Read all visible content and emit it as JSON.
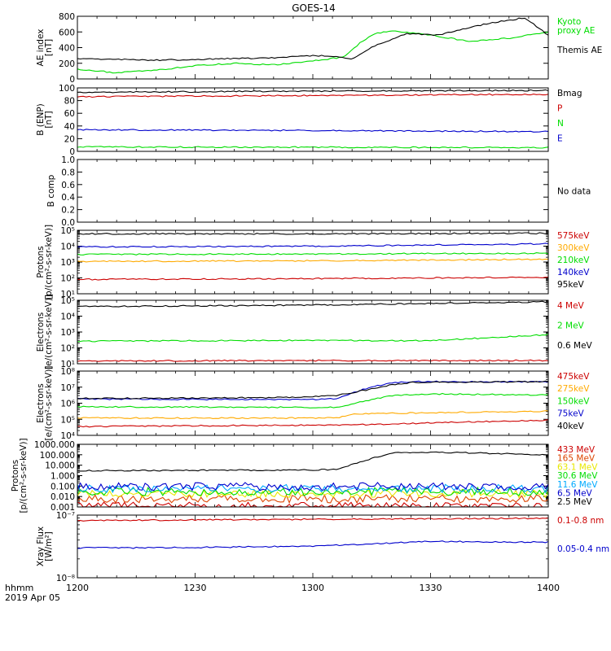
{
  "title": "GOES-14",
  "footer": {
    "time_label": "hhmm",
    "date_label": "2019 Apr 05"
  },
  "x_ticks": [
    "1200",
    "1230",
    "1300",
    "1330",
    "1400"
  ],
  "chart_data": [
    {
      "type": "line",
      "ylabel": [
        "AE index",
        "[nT]"
      ],
      "ylim": [
        0,
        800
      ],
      "yticks": [
        "0",
        "200",
        "400",
        "600",
        "800"
      ],
      "series": [
        {
          "name": "Kyoto proxy AE",
          "label_lines": [
            "Kyoto",
            "proxy AE"
          ],
          "color": "#00dd00",
          "x": [
            0,
            10,
            20,
            30,
            40,
            50,
            60,
            68,
            72,
            76,
            80,
            90,
            100,
            110,
            120
          ],
          "y": [
            120,
            80,
            110,
            170,
            200,
            180,
            230,
            280,
            460,
            580,
            620,
            560,
            480,
            520,
            600
          ]
        },
        {
          "name": "Themis AE",
          "color": "#000000",
          "x": [
            0,
            10,
            20,
            30,
            40,
            50,
            60,
            64,
            70,
            76,
            84,
            92,
            100,
            106,
            114,
            120
          ],
          "y": [
            260,
            250,
            240,
            250,
            260,
            270,
            300,
            290,
            260,
            430,
            580,
            560,
            660,
            720,
            780,
            560
          ]
        }
      ]
    },
    {
      "type": "line",
      "ylabel": [
        "B (ENP)",
        "[nT]"
      ],
      "ylim": [
        0,
        100
      ],
      "yticks": [
        "0",
        "20",
        "40",
        "60",
        "80",
        "100"
      ],
      "series": [
        {
          "name": "Bmag",
          "color": "#000000",
          "x": [
            0,
            60,
            120
          ],
          "y": [
            93,
            95,
            96
          ]
        },
        {
          "name": "P",
          "color": "#cc0000",
          "x": [
            0,
            60,
            120
          ],
          "y": [
            86,
            88,
            90
          ]
        },
        {
          "name": "N",
          "color": "#00dd00",
          "x": [
            0,
            60,
            120
          ],
          "y": [
            7,
            6.5,
            6
          ]
        },
        {
          "name": "E",
          "color": "#0000cc",
          "x": [
            0,
            60,
            120
          ],
          "y": [
            34,
            33,
            31
          ]
        }
      ]
    },
    {
      "type": "line",
      "ylabel": [
        "B comp"
      ],
      "ylim": [
        0,
        1
      ],
      "yticks": [
        "0.0",
        "0.2",
        "0.4",
        "0.6",
        "0.8",
        "1.0"
      ],
      "note": "No data",
      "series": []
    },
    {
      "type": "line",
      "log": true,
      "ylabel": [
        "Protons",
        "[p/(cm²-s-sr-keV)]"
      ],
      "ylim": [
        10,
        100000
      ],
      "yticks": [
        "10¹",
        "10²",
        "10³",
        "10⁴",
        "10⁵"
      ],
      "series": [
        {
          "name": "575keV",
          "color": "#cc0000",
          "x": [
            0,
            60,
            120
          ],
          "y": [
            80,
            90,
            110
          ]
        },
        {
          "name": "300keV",
          "color": "#ffaa00",
          "x": [
            0,
            60,
            120
          ],
          "y": [
            1100,
            1200,
            1500
          ]
        },
        {
          "name": "210keV",
          "color": "#00dd00",
          "x": [
            0,
            60,
            120
          ],
          "y": [
            3000,
            3200,
            3600
          ]
        },
        {
          "name": "140keV",
          "color": "#0000cc",
          "x": [
            0,
            60,
            120
          ],
          "y": [
            9000,
            10000,
            14000
          ]
        },
        {
          "name": "95keV",
          "color": "#000000",
          "x": [
            0,
            60,
            120
          ],
          "y": [
            60000,
            60000,
            65000
          ]
        }
      ]
    },
    {
      "type": "line",
      "log": true,
      "ylabel": [
        "Electrons",
        "[e/(cm²-s-sr-keV)]"
      ],
      "ylim": [
        10,
        100000
      ],
      "yticks": [
        "10¹",
        "10²",
        "10³",
        "10⁴",
        "10⁵"
      ],
      "series": [
        {
          "name": "4 MeV",
          "color": "#cc0000",
          "x": [
            0,
            60,
            120
          ],
          "y": [
            15,
            16,
            16
          ]
        },
        {
          "name": "2 MeV",
          "color": "#00dd00",
          "x": [
            0,
            60,
            90,
            120
          ],
          "y": [
            260,
            300,
            280,
            700
          ]
        },
        {
          "name": "0.6 MeV",
          "color": "#000000",
          "x": [
            0,
            60,
            120
          ],
          "y": [
            40000,
            50000,
            80000
          ]
        }
      ]
    },
    {
      "type": "line",
      "log": true,
      "ylabel": [
        "Electrons",
        "[e/(cm²-s-sr-keV)]"
      ],
      "ylim": [
        10000,
        100000000
      ],
      "yticks": [
        "10⁴",
        "10⁵",
        "10⁶",
        "10⁷",
        "10⁸"
      ],
      "series": [
        {
          "name": "475keV",
          "color": "#cc0000",
          "x": [
            0,
            70,
            120
          ],
          "y": [
            35000,
            45000,
            90000
          ]
        },
        {
          "name": "275keV",
          "color": "#ffaa00",
          "x": [
            0,
            66,
            70,
            120
          ],
          "y": [
            120000,
            120000,
            220000,
            320000
          ]
        },
        {
          "name": "150keV",
          "color": "#00dd00",
          "x": [
            0,
            66,
            74,
            80,
            90,
            120
          ],
          "y": [
            600000,
            550000,
            1500000,
            3000000,
            3800000,
            3200000
          ]
        },
        {
          "name": "75keV",
          "color": "#0000cc",
          "x": [
            0,
            60,
            66,
            74,
            80,
            86,
            120
          ],
          "y": [
            1800000,
            1700000,
            2000000,
            9000000,
            18000000,
            22000000,
            22000000
          ]
        },
        {
          "name": "40keV",
          "color": "#000000",
          "x": [
            0,
            50,
            66,
            74,
            80,
            86,
            120
          ],
          "y": [
            2000000,
            2200000,
            3000000,
            7000000,
            14000000,
            20000000,
            22000000
          ]
        }
      ]
    },
    {
      "type": "line",
      "log": true,
      "ylabel": [
        "Protons",
        "[p/(cm²-s-sr-keV)]"
      ],
      "ylim": [
        0.001,
        1000
      ],
      "yticks": [
        "0.001",
        "0.010",
        "0.100",
        "1.000",
        "10.000",
        "100.000",
        "1000.000"
      ],
      "series": [
        {
          "name": "433 MeV",
          "color": "#cc0000",
          "x": [
            0,
            120
          ],
          "y": [
            0.0012,
            0.0012
          ]
        },
        {
          "name": "165 MeV",
          "color": "#dd4400",
          "x": [
            0,
            120
          ],
          "y": [
            0.006,
            0.006
          ]
        },
        {
          "name": "63.1 MeV",
          "color": "#e8e800",
          "x": [
            0,
            120
          ],
          "y": [
            0.02,
            0.02
          ]
        },
        {
          "name": "30.6 MeV",
          "color": "#00dd00",
          "x": [
            0,
            120
          ],
          "y": [
            0.03,
            0.03
          ]
        },
        {
          "name": "11.6 MeV",
          "color": "#00aaff",
          "x": [
            0,
            120
          ],
          "y": [
            0.06,
            0.06
          ]
        },
        {
          "name": "6.5 MeV",
          "color": "#0000cc",
          "x": [
            0,
            120
          ],
          "y": [
            0.09,
            0.09
          ]
        },
        {
          "name": "2.5 MeV",
          "color": "#000000",
          "x": [
            0,
            60,
            66,
            72,
            80,
            90,
            100,
            120
          ],
          "y": [
            3,
            3.5,
            4,
            20,
            150,
            180,
            150,
            100
          ]
        }
      ]
    },
    {
      "type": "line",
      "log": true,
      "ylabel": [
        "Xray Flux",
        "[W/m²]"
      ],
      "ylim": [
        1e-08,
        1e-07
      ],
      "yticks": [
        "10⁻⁸",
        "10⁻⁷"
      ],
      "series": [
        {
          "name": "0.1-0.8 nm",
          "color": "#cc0000",
          "x": [
            0,
            60,
            120
          ],
          "y": [
            8.2e-08,
            8.6e-08,
            8.9e-08
          ]
        },
        {
          "name": "0.05-0.4 nm",
          "color": "#0000cc",
          "x": [
            0,
            20,
            60,
            90,
            120
          ],
          "y": [
            3e-08,
            3e-08,
            3.2e-08,
            3.8e-08,
            3.7e-08
          ]
        }
      ]
    }
  ]
}
